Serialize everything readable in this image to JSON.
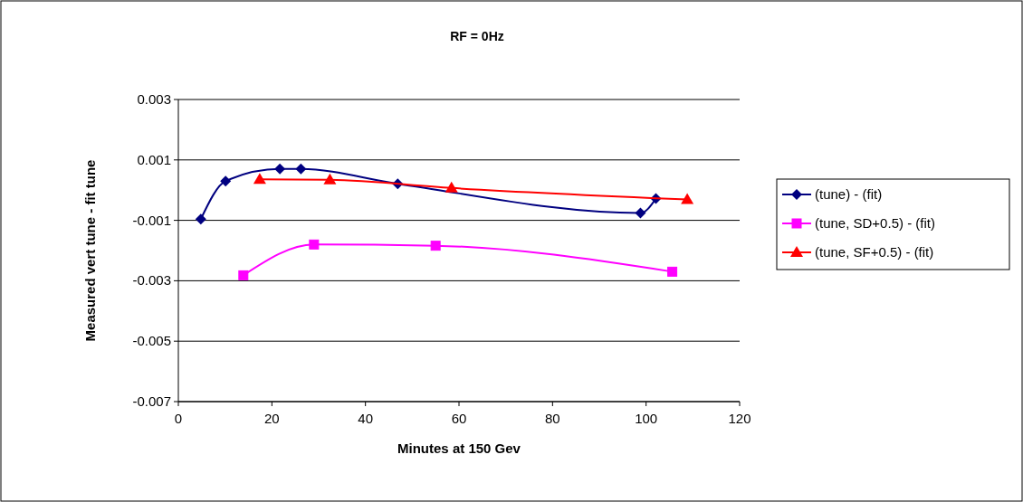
{
  "chart_data": {
    "type": "line",
    "title": "RF  = 0Hz",
    "xlabel": "Minutes at 150 Gev",
    "ylabel": "Measured vert tune - fit tune",
    "xlim": [
      0,
      120
    ],
    "xticks": [
      0,
      20,
      40,
      60,
      80,
      100,
      120
    ],
    "ylim": [
      -0.007,
      0.003
    ],
    "yticks": [
      -0.007,
      -0.005,
      -0.003,
      -0.001,
      0.001,
      0.003
    ],
    "grid": "y",
    "legend": "right",
    "series": [
      {
        "name": "(tune) - (fit)",
        "color": "#000080",
        "marker": "diamond",
        "x": [
          4.8,
          10.1,
          21.7,
          26.2,
          46.9,
          98.8,
          102.1
        ],
        "values": [
          -0.00096,
          0.0003,
          0.0007,
          0.0007,
          0.00021,
          -0.00076,
          -0.00028
        ]
      },
      {
        "name": "(tune, SD+0.5) - (fit)",
        "color": "#ff00ff",
        "marker": "square",
        "x": [
          13.9,
          29,
          55,
          105.6
        ],
        "values": [
          -0.00282,
          -0.0018,
          -0.00184,
          -0.0027
        ]
      },
      {
        "name": "(tune, SF+0.5) - (fit)",
        "color": "#ff0000",
        "marker": "triangle",
        "x": [
          17.4,
          32.4,
          58.4,
          108.8
        ],
        "values": [
          0.00036,
          0.00034,
          7e-05,
          -0.00031
        ]
      }
    ]
  }
}
